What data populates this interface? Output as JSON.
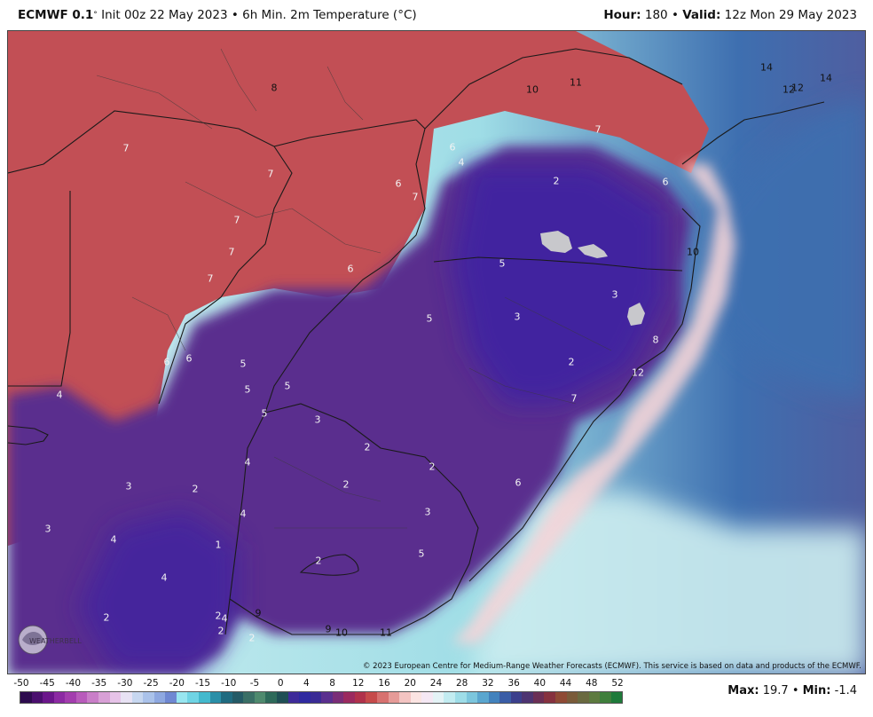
{
  "header": {
    "model": "ECMWF 0.1",
    "degree_sign": "°",
    "init": "Init 00z 22 May 2023",
    "separator": "•",
    "product": "6h Min. 2m Temperature (°C)",
    "hour_label": "Hour:",
    "hour_value": "180",
    "valid_label": "Valid:",
    "valid_value": "12z Mon 29 May 2023"
  },
  "map": {
    "copyright": "© 2023 European Centre for Medium-Range Weather Forecasts (ECMWF). This service is based on data and products of the ECMWF.",
    "logo_text": "WEATHERBELL",
    "colors": {
      "warm_land": "#c24f55",
      "cool_land": "#5a2d8e",
      "cold_core": "#3d22a3",
      "coastal_rim": "#f4d4d8",
      "ocean_warm": "#cdeef0",
      "ocean_cool": "#9fdde6",
      "ocean_cold": "#3e6fb0",
      "ocean_far": "#4f5ea0",
      "frost": "#c8c8cc"
    },
    "labels": [
      {
        "text": "8"
      },
      {
        "text": "10"
      },
      {
        "text": "11"
      },
      {
        "text": "14"
      },
      {
        "text": "12"
      },
      {
        "text": "12"
      },
      {
        "text": "14"
      },
      {
        "text": "7"
      },
      {
        "text": "7"
      },
      {
        "text": "6"
      },
      {
        "text": "4"
      },
      {
        "text": "7"
      },
      {
        "text": "6"
      },
      {
        "text": "2"
      },
      {
        "text": "6"
      },
      {
        "text": "7"
      },
      {
        "text": "7"
      },
      {
        "text": "7"
      },
      {
        "text": "7"
      },
      {
        "text": "6"
      },
      {
        "text": "5"
      },
      {
        "text": "10"
      },
      {
        "text": "3"
      },
      {
        "text": "5"
      },
      {
        "text": "3"
      },
      {
        "text": "8"
      },
      {
        "text": "2"
      },
      {
        "text": "12"
      },
      {
        "text": "6"
      },
      {
        "text": "6"
      },
      {
        "text": "5"
      },
      {
        "text": "4"
      },
      {
        "text": "5"
      },
      {
        "text": "5"
      },
      {
        "text": "5"
      },
      {
        "text": "7"
      },
      {
        "text": "3"
      },
      {
        "text": "2"
      },
      {
        "text": "2"
      },
      {
        "text": "4"
      },
      {
        "text": "2"
      },
      {
        "text": "6"
      },
      {
        "text": "3"
      },
      {
        "text": "2"
      },
      {
        "text": "3"
      },
      {
        "text": "4"
      },
      {
        "text": "3"
      },
      {
        "text": "1"
      },
      {
        "text": "4"
      },
      {
        "text": "2"
      },
      {
        "text": "5"
      },
      {
        "text": "4"
      },
      {
        "text": "2"
      },
      {
        "text": "2"
      },
      {
        "text": "4"
      },
      {
        "text": "2"
      },
      {
        "text": "2"
      },
      {
        "text": "9"
      },
      {
        "text": "9"
      },
      {
        "text": "10"
      },
      {
        "text": "11"
      }
    ]
  },
  "colorbar": {
    "ticks": [
      "-50",
      "-45",
      "-40",
      "-35",
      "-30",
      "-25",
      "-20",
      "-15",
      "-10",
      "-5",
      "0",
      "4",
      "8",
      "12",
      "16",
      "20",
      "24",
      "28",
      "32",
      "36",
      "40",
      "44",
      "48",
      "52"
    ],
    "colors": [
      "#2d0b4e",
      "#4a0f6e",
      "#6b168b",
      "#8c2aa3",
      "#a33dae",
      "#b85bbb",
      "#c97ec8",
      "#d8a0d6",
      "#e6c3e8",
      "#e8e2f4",
      "#c7d7f0",
      "#aac2ea",
      "#8ea8e0",
      "#6f88d2",
      "#98e6f0",
      "#6fd4e4",
      "#43b9cd",
      "#2a8fa8",
      "#1f6b80",
      "#245a66",
      "#3a6f66",
      "#4f8a6e",
      "#2e6a5a",
      "#1f4f55",
      "#3e2b9a",
      "#2f2aa0",
      "#3a2b95",
      "#5a2f8e",
      "#7a2d77",
      "#9b2a5f",
      "#b0324b",
      "#c64a4a",
      "#d7716f",
      "#e69b98",
      "#f3c4c2",
      "#fbe4e2",
      "#f5e8f4",
      "#e4f3f6",
      "#c2ecf1",
      "#9edde8",
      "#7cc6dd",
      "#5aa6cf",
      "#4282bd",
      "#3a5da6",
      "#3b3f8c",
      "#4d3471",
      "#6b2f55",
      "#86323f",
      "#8f4a35",
      "#7a5b3a",
      "#6a6a40",
      "#5d7a3f",
      "#3f7f3c",
      "#1e7a3a"
    ]
  },
  "stats": {
    "max_label": "Max:",
    "max_value": "19.7",
    "separator": "•",
    "min_label": "Min:",
    "min_value": "-1.4"
  }
}
